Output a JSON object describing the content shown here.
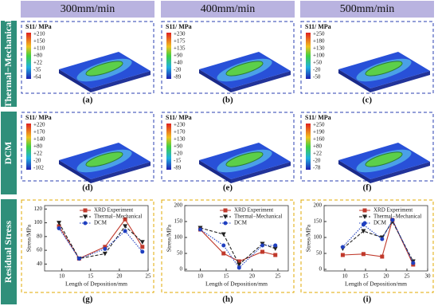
{
  "columns": [
    "300mm/min",
    "400mm/min",
    "500mm/min"
  ],
  "rows": [
    "Thermal−Mechanical",
    "DCM",
    "Residual Stress"
  ],
  "panels": [
    {
      "label": "(a)",
      "colorbar_title": "S11/ MPa",
      "colorbar_ticks": [
        "+210",
        "+150",
        "+110",
        "+80",
        "+22",
        "-35",
        "-64"
      ]
    },
    {
      "label": "(b)",
      "colorbar_title": "S11/ MPa",
      "colorbar_ticks": [
        "+230",
        "+175",
        "+135",
        "+90",
        "+40",
        "-20",
        "-89"
      ]
    },
    {
      "label": "(c)",
      "colorbar_title": "S11/ MPa",
      "colorbar_ticks": [
        "+250",
        "+180",
        "+130",
        "+100",
        "+50",
        "-20",
        "-50"
      ]
    },
    {
      "label": "(d)",
      "colorbar_title": "S11/ MPa",
      "colorbar_ticks": [
        "+220",
        "+170",
        "+140",
        "+80",
        "+22",
        "-20",
        "-102"
      ]
    },
    {
      "label": "(e)",
      "colorbar_title": "S11/ MPa",
      "colorbar_ticks": [
        "+230",
        "+170",
        "+130",
        "+90",
        "+20",
        "-15",
        "-89"
      ]
    },
    {
      "label": "(f)",
      "colorbar_title": "S11/ MPa",
      "colorbar_ticks": [
        "+250",
        "+190",
        "+160",
        "+80",
        "+22",
        "-20",
        "-78"
      ]
    }
  ],
  "chart_data": [
    {
      "type": "line",
      "label": "(g)",
      "xlabel": "Length of Deposition/mm",
      "ylabel": "Stress/MPa",
      "x": [
        9.5,
        13,
        17.5,
        21,
        24
      ],
      "xlim": [
        7,
        25
      ],
      "xticks": [
        10,
        15,
        20,
        25
      ],
      "ylim": [
        30,
        125
      ],
      "yticks": [
        40,
        60,
        80,
        100,
        120
      ],
      "series": [
        {
          "name": "XRD Experiment",
          "color": "#c0392b",
          "style": "solid",
          "marker": "square",
          "values": [
            95,
            48,
            65,
            105,
            65
          ]
        },
        {
          "name": "Thermal−Mechanical",
          "color": "#222222",
          "style": "dashed",
          "marker": "triangle",
          "values": [
            100,
            48,
            55,
            95,
            72
          ]
        },
        {
          "name": "DCM",
          "color": "#1f3fbf",
          "style": "dotted",
          "marker": "circle",
          "values": [
            92,
            48,
            62,
            88,
            58
          ]
        }
      ]
    },
    {
      "type": "line",
      "label": "(h)",
      "xlabel": "Length of Deposition/mm",
      "ylabel": "Stress/MPa",
      "x": [
        10,
        14.5,
        17.5,
        22,
        24.5
      ],
      "xlim": [
        7,
        27
      ],
      "xticks": [
        10,
        15,
        20,
        25
      ],
      "ylim": [
        -5,
        200
      ],
      "yticks": [
        0,
        50,
        100,
        150,
        200
      ],
      "series": [
        {
          "name": "XRD Experiment",
          "color": "#c0392b",
          "style": "solid",
          "marker": "square",
          "values": [
            125,
            50,
            25,
            55,
            45
          ]
        },
        {
          "name": "Thermal−Mechanical",
          "color": "#222222",
          "style": "dashed",
          "marker": "triangle",
          "values": [
            130,
            110,
            15,
            80,
            65
          ]
        },
        {
          "name": "DCM",
          "color": "#1f3fbf",
          "style": "dotted",
          "marker": "circle",
          "values": [
            125,
            75,
            5,
            75,
            75
          ]
        }
      ]
    },
    {
      "type": "line",
      "label": "(i)",
      "xlabel": "Length of Deposition/mm",
      "ylabel": "Stress/MPa",
      "x": [
        9.5,
        14.5,
        19,
        21.5,
        26.5
      ],
      "xlim": [
        5,
        30
      ],
      "xticks": [
        10,
        15,
        20,
        25,
        30
      ],
      "ylim": [
        -5,
        200
      ],
      "yticks": [
        0,
        50,
        100,
        150,
        200
      ],
      "series": [
        {
          "name": "XRD Experiment",
          "color": "#c0392b",
          "style": "solid",
          "marker": "square",
          "values": [
            45,
            48,
            40,
            155,
            15
          ]
        },
        {
          "name": "Thermal−Mechanical",
          "color": "#222222",
          "style": "dashed",
          "marker": "triangle",
          "values": [
            65,
            120,
            100,
            150,
            25
          ]
        },
        {
          "name": "DCM",
          "color": "#1f3fbf",
          "style": "dotted",
          "marker": "circle",
          "values": [
            70,
            140,
            95,
            155,
            20
          ]
        }
      ]
    }
  ]
}
